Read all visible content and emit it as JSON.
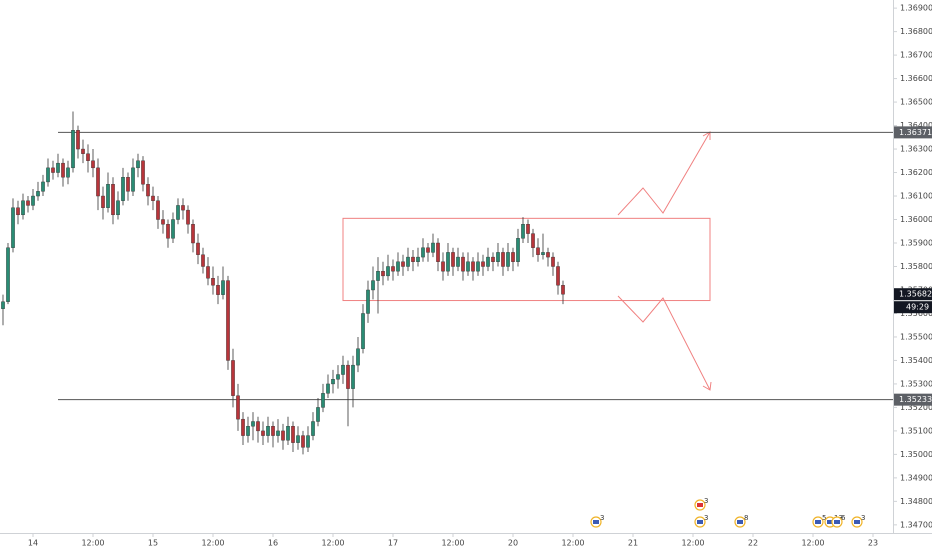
{
  "chart_data": {
    "type": "candlestick",
    "x": [
      0,
      1,
      2,
      3,
      4,
      5,
      6,
      7,
      8,
      9,
      10,
      11,
      12,
      13,
      14,
      15,
      16,
      17,
      18,
      19,
      20,
      21,
      22,
      23,
      24,
      25,
      26,
      27,
      28,
      29,
      30,
      31,
      32,
      33,
      34,
      35,
      36,
      37,
      38,
      39,
      40,
      41,
      42,
      43,
      44,
      45,
      46,
      47,
      48,
      49,
      50,
      51,
      52,
      53,
      54,
      55,
      56,
      57,
      58,
      59,
      60,
      61,
      62,
      63,
      64,
      65,
      66,
      67,
      68,
      69,
      70,
      71,
      72,
      73,
      74,
      75,
      76,
      77,
      78,
      79,
      80,
      81,
      82,
      83,
      84,
      85,
      86,
      87,
      88,
      89,
      90,
      91,
      92,
      93,
      94,
      95,
      96,
      97,
      98,
      99,
      100,
      101,
      102,
      103,
      104,
      105,
      106,
      107,
      108,
      109,
      110,
      111,
      112
    ],
    "open": [
      1.3562,
      1.3565,
      1.3588,
      1.3605,
      1.3602,
      1.3608,
      1.3606,
      1.361,
      1.3612,
      1.3616,
      1.3622,
      1.362,
      1.3624,
      1.3618,
      1.3622,
      1.3638,
      1.363,
      1.3628,
      1.3625,
      1.3622,
      1.361,
      1.3605,
      1.3615,
      1.3602,
      1.3608,
      1.3618,
      1.3612,
      1.3622,
      1.3625,
      1.3615,
      1.361,
      1.3608,
      1.36,
      1.3598,
      1.3592,
      1.36,
      1.3606,
      1.3604,
      1.3598,
      1.359,
      1.3585,
      1.358,
      1.3575,
      1.3572,
      1.3568,
      1.3574,
      1.354,
      1.3525,
      1.3515,
      1.3508,
      1.3512,
      1.3514,
      1.351,
      1.3508,
      1.3512,
      1.3508,
      1.351,
      1.3506,
      1.3512,
      1.3505,
      1.3508,
      1.3503,
      1.3508,
      1.3514,
      1.352,
      1.3526,
      1.353,
      1.3532,
      1.3534,
      1.3538,
      1.3528,
      1.3538,
      1.3545,
      1.356,
      1.357,
      1.3574,
      1.3578,
      1.3576,
      1.358,
      1.3578,
      1.3582,
      1.358,
      1.3584,
      1.3582,
      1.3584,
      1.3588,
      1.3586,
      1.359,
      1.3582,
      1.3578,
      1.3586,
      1.358,
      1.3584,
      1.3578,
      1.3582,
      1.3578,
      1.3582,
      1.358,
      1.3584,
      1.3582,
      1.3586,
      1.358,
      1.3586,
      1.3582,
      1.3592,
      1.3598,
      1.3594,
      1.3588,
      1.3585,
      1.3586,
      1.3584,
      1.358,
      1.3572
    ],
    "high": [
      1.3568,
      1.359,
      1.3609,
      1.3608,
      1.3611,
      1.361,
      1.3613,
      1.3616,
      1.3619,
      1.3626,
      1.3625,
      1.3628,
      1.3626,
      1.3625,
      1.3646,
      1.364,
      1.3634,
      1.3632,
      1.363,
      1.3626,
      1.3614,
      1.362,
      1.3618,
      1.3612,
      1.3622,
      1.362,
      1.3626,
      1.3628,
      1.3627,
      1.3618,
      1.3614,
      1.361,
      1.3604,
      1.36,
      1.3603,
      1.3609,
      1.3609,
      1.3606,
      1.36,
      1.3594,
      1.3588,
      1.3584,
      1.358,
      1.3576,
      1.358,
      1.3576,
      1.3545,
      1.353,
      1.3518,
      1.3516,
      1.3518,
      1.3516,
      1.3514,
      1.3516,
      1.3514,
      1.3515,
      1.3513,
      1.3516,
      1.3514,
      1.3512,
      1.351,
      1.3512,
      1.3518,
      1.3524,
      1.353,
      1.3534,
      1.3536,
      1.3538,
      1.3542,
      1.354,
      1.3542,
      1.355,
      1.3564,
      1.3574,
      1.358,
      1.3584,
      1.3582,
      1.3585,
      1.3583,
      1.3586,
      1.3585,
      1.3588,
      1.3587,
      1.3588,
      1.3592,
      1.359,
      1.3594,
      1.3592,
      1.3586,
      1.359,
      1.3588,
      1.3588,
      1.3586,
      1.3586,
      1.3584,
      1.3586,
      1.3585,
      1.3588,
      1.3586,
      1.359,
      1.3588,
      1.359,
      1.3588,
      1.3596,
      1.3601,
      1.36,
      1.3596,
      1.3592,
      1.3594,
      1.3588,
      1.3586,
      1.3582,
      1.3574
    ],
    "low": [
      1.3555,
      1.3564,
      1.3586,
      1.3598,
      1.36,
      1.3603,
      1.3604,
      1.3608,
      1.361,
      1.3614,
      1.3617,
      1.3618,
      1.3614,
      1.3615,
      1.362,
      1.3626,
      1.3624,
      1.362,
      1.3618,
      1.3604,
      1.36,
      1.3603,
      1.3598,
      1.36,
      1.3606,
      1.3608,
      1.361,
      1.3618,
      1.3612,
      1.3606,
      1.3604,
      1.3596,
      1.3594,
      1.3588,
      1.359,
      1.3598,
      1.36,
      1.3594,
      1.3586,
      1.3581,
      1.3577,
      1.3572,
      1.3568,
      1.3564,
      1.3566,
      1.3536,
      1.352,
      1.351,
      1.3504,
      1.3505,
      1.3506,
      1.3505,
      1.3504,
      1.3505,
      1.3503,
      1.3505,
      1.3502,
      1.3504,
      1.3501,
      1.3502,
      1.35,
      1.3501,
      1.3506,
      1.3512,
      1.3518,
      1.3524,
      1.3526,
      1.3528,
      1.353,
      1.3512,
      1.352,
      1.3535,
      1.3543,
      1.3556,
      1.3566,
      1.356,
      1.3572,
      1.3574,
      1.3574,
      1.3576,
      1.3576,
      1.3578,
      1.3578,
      1.358,
      1.3582,
      1.3582,
      1.3584,
      1.3578,
      1.3574,
      1.3576,
      1.3576,
      1.3578,
      1.3574,
      1.3576,
      1.3574,
      1.3576,
      1.3576,
      1.3578,
      1.3578,
      1.358,
      1.3576,
      1.3578,
      1.3578,
      1.358,
      1.359,
      1.359,
      1.3584,
      1.3582,
      1.3583,
      1.358,
      1.3576,
      1.3568,
      1.3564
    ],
    "close": [
      1.3565,
      1.3588,
      1.3605,
      1.3602,
      1.3608,
      1.3606,
      1.361,
      1.3612,
      1.3616,
      1.3622,
      1.362,
      1.3624,
      1.3618,
      1.3622,
      1.3638,
      1.363,
      1.3628,
      1.3625,
      1.3622,
      1.361,
      1.3605,
      1.3615,
      1.3602,
      1.3608,
      1.3618,
      1.3612,
      1.3622,
      1.3625,
      1.3615,
      1.361,
      1.3608,
      1.36,
      1.3598,
      1.3592,
      1.36,
      1.3606,
      1.3604,
      1.3598,
      1.359,
      1.3585,
      1.358,
      1.3575,
      1.3572,
      1.3568,
      1.3574,
      1.354,
      1.3525,
      1.3515,
      1.3508,
      1.3512,
      1.3514,
      1.351,
      1.3508,
      1.3512,
      1.3508,
      1.351,
      1.3506,
      1.3512,
      1.3505,
      1.3508,
      1.3503,
      1.3508,
      1.3514,
      1.352,
      1.3526,
      1.353,
      1.3532,
      1.3534,
      1.3538,
      1.3528,
      1.3538,
      1.3545,
      1.356,
      1.357,
      1.3574,
      1.3578,
      1.3576,
      1.358,
      1.3578,
      1.3582,
      1.358,
      1.3584,
      1.3582,
      1.3584,
      1.3588,
      1.3586,
      1.359,
      1.3582,
      1.3578,
      1.3586,
      1.358,
      1.3584,
      1.3578,
      1.3582,
      1.3578,
      1.3582,
      1.358,
      1.3584,
      1.3582,
      1.3586,
      1.358,
      1.3586,
      1.3582,
      1.3592,
      1.3598,
      1.3594,
      1.3588,
      1.3585,
      1.3586,
      1.3584,
      1.358,
      1.3572,
      1.35682
    ],
    "up_color": "#2a8c74",
    "down_color": "#b8353b",
    "xlim": [
      -0.6,
      178
    ],
    "xticks": [
      {
        "value": 6,
        "label": "14"
      },
      {
        "value": 18,
        "label": "12:00"
      },
      {
        "value": 30,
        "label": "15"
      },
      {
        "value": 42,
        "label": "12:00"
      },
      {
        "value": 54,
        "label": "16"
      },
      {
        "value": 66,
        "label": "12:00"
      },
      {
        "value": 78,
        "label": "17"
      },
      {
        "value": 90,
        "label": "12:00"
      },
      {
        "value": 102,
        "label": "20"
      },
      {
        "value": 114,
        "label": "12:00"
      },
      {
        "value": 126,
        "label": "21"
      },
      {
        "value": 138,
        "label": "12:00"
      },
      {
        "value": 150,
        "label": "22"
      },
      {
        "value": 162,
        "label": "12:00"
      },
      {
        "value": 174,
        "label": "23"
      }
    ],
    "ylim": [
      1.346653,
      1.369346
    ],
    "yticks": [
      {
        "value": 1.347,
        "label": "1.34700"
      },
      {
        "value": 1.348,
        "label": "1.34800"
      },
      {
        "value": 1.349,
        "label": "1.34900"
      },
      {
        "value": 1.35,
        "label": "1.35000"
      },
      {
        "value": 1.351,
        "label": "1.35100"
      },
      {
        "value": 1.352,
        "label": "1.35200"
      },
      {
        "value": 1.353,
        "label": "1.35300"
      },
      {
        "value": 1.354,
        "label": "1.35400"
      },
      {
        "value": 1.355,
        "label": "1.35500"
      },
      {
        "value": 1.356,
        "label": "1.35600"
      },
      {
        "value": 1.357,
        "label": "1.35700"
      },
      {
        "value": 1.358,
        "label": "1.35800"
      },
      {
        "value": 1.359,
        "label": "1.35900"
      },
      {
        "value": 1.36,
        "label": "1.36000"
      },
      {
        "value": 1.361,
        "label": "1.36100"
      },
      {
        "value": 1.362,
        "label": "1.36200"
      },
      {
        "value": 1.363,
        "label": "1.36300"
      },
      {
        "value": 1.364,
        "label": "1.36400"
      },
      {
        "value": 1.365,
        "label": "1.36500"
      },
      {
        "value": 1.366,
        "label": "1.36600"
      },
      {
        "value": 1.367,
        "label": "1.36700"
      },
      {
        "value": 1.368,
        "label": "1.36800"
      },
      {
        "value": 1.369,
        "label": "1.36900"
      }
    ],
    "grid": false,
    "levels": [
      {
        "value": 1.36371,
        "label": "1.36371"
      },
      {
        "value": 1.35233,
        "label": "1.35233"
      }
    ],
    "last_price_label": "1.35682",
    "countdown": "49:29",
    "box": {
      "top": 1.36005,
      "bottom": 1.35655,
      "color": "#f08080"
    },
    "events": [
      "3",
      "3",
      "3",
      "8",
      "5",
      "13",
      "6",
      "3"
    ]
  }
}
